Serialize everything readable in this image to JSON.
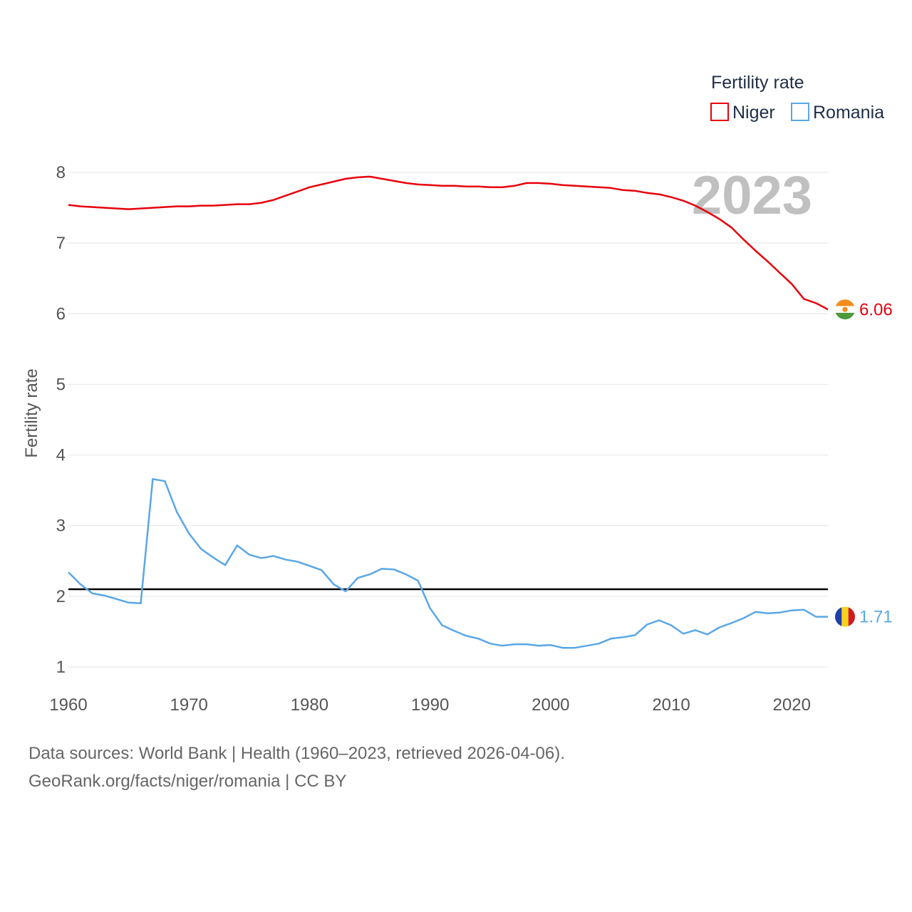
{
  "chart_data": {
    "type": "line",
    "legend_title": "Fertility rate",
    "ylabel": "Fertility rate",
    "year_label": "2023",
    "ylim": [
      0.75,
      8.2
    ],
    "xlim": [
      1960,
      2023
    ],
    "y_ticks": [
      "1",
      "2",
      "3",
      "4",
      "5",
      "6",
      "7",
      "8"
    ],
    "x_ticks": [
      "1960",
      "1970",
      "1980",
      "1990",
      "2000",
      "2010",
      "2020"
    ],
    "reference_line": 2.1,
    "legend_position": "top-right",
    "years": [
      1960,
      1961,
      1962,
      1963,
      1964,
      1965,
      1966,
      1967,
      1968,
      1969,
      1970,
      1971,
      1972,
      1973,
      1974,
      1975,
      1976,
      1977,
      1978,
      1979,
      1980,
      1981,
      1982,
      1983,
      1984,
      1985,
      1986,
      1987,
      1988,
      1989,
      1990,
      1991,
      1992,
      1993,
      1994,
      1995,
      1996,
      1997,
      1998,
      1999,
      2000,
      2001,
      2002,
      2003,
      2004,
      2005,
      2006,
      2007,
      2008,
      2009,
      2010,
      2011,
      2012,
      2013,
      2014,
      2015,
      2016,
      2017,
      2018,
      2019,
      2020,
      2021,
      2022,
      2023
    ],
    "series": [
      {
        "name": "Niger",
        "color": "#e8000b",
        "end_label": "6.06",
        "values": [
          7.54,
          7.52,
          7.51,
          7.5,
          7.49,
          7.48,
          7.49,
          7.5,
          7.51,
          7.52,
          7.52,
          7.53,
          7.53,
          7.54,
          7.55,
          7.55,
          7.57,
          7.61,
          7.67,
          7.73,
          7.79,
          7.83,
          7.87,
          7.91,
          7.93,
          7.94,
          7.91,
          7.88,
          7.85,
          7.83,
          7.82,
          7.81,
          7.81,
          7.8,
          7.8,
          7.79,
          7.79,
          7.81,
          7.85,
          7.85,
          7.84,
          7.82,
          7.81,
          7.8,
          7.79,
          7.78,
          7.75,
          7.74,
          7.71,
          7.69,
          7.65,
          7.6,
          7.53,
          7.44,
          7.34,
          7.22,
          7.05,
          6.89,
          6.74,
          6.58,
          6.42,
          6.21,
          6.15,
          6.06
        ]
      },
      {
        "name": "Romania",
        "color": "#5aa7e6",
        "end_label": "1.71",
        "values": [
          2.34,
          2.17,
          2.04,
          2.01,
          1.96,
          1.91,
          1.9,
          3.66,
          3.63,
          3.19,
          2.89,
          2.67,
          2.55,
          2.44,
          2.72,
          2.59,
          2.54,
          2.57,
          2.52,
          2.49,
          2.43,
          2.37,
          2.17,
          2.07,
          2.26,
          2.31,
          2.39,
          2.38,
          2.31,
          2.22,
          1.83,
          1.59,
          1.51,
          1.44,
          1.4,
          1.33,
          1.3,
          1.32,
          1.32,
          1.3,
          1.31,
          1.27,
          1.27,
          1.3,
          1.33,
          1.4,
          1.42,
          1.45,
          1.6,
          1.66,
          1.59,
          1.47,
          1.52,
          1.46,
          1.56,
          1.62,
          1.69,
          1.78,
          1.76,
          1.77,
          1.8,
          1.81,
          1.71,
          1.71
        ]
      }
    ]
  },
  "footer": {
    "line1": "Data sources: World Bank | Health (1960–2023, retrieved 2026-04-06).",
    "line2": "GeoRank.org/facts/niger/romania | CC BY"
  }
}
